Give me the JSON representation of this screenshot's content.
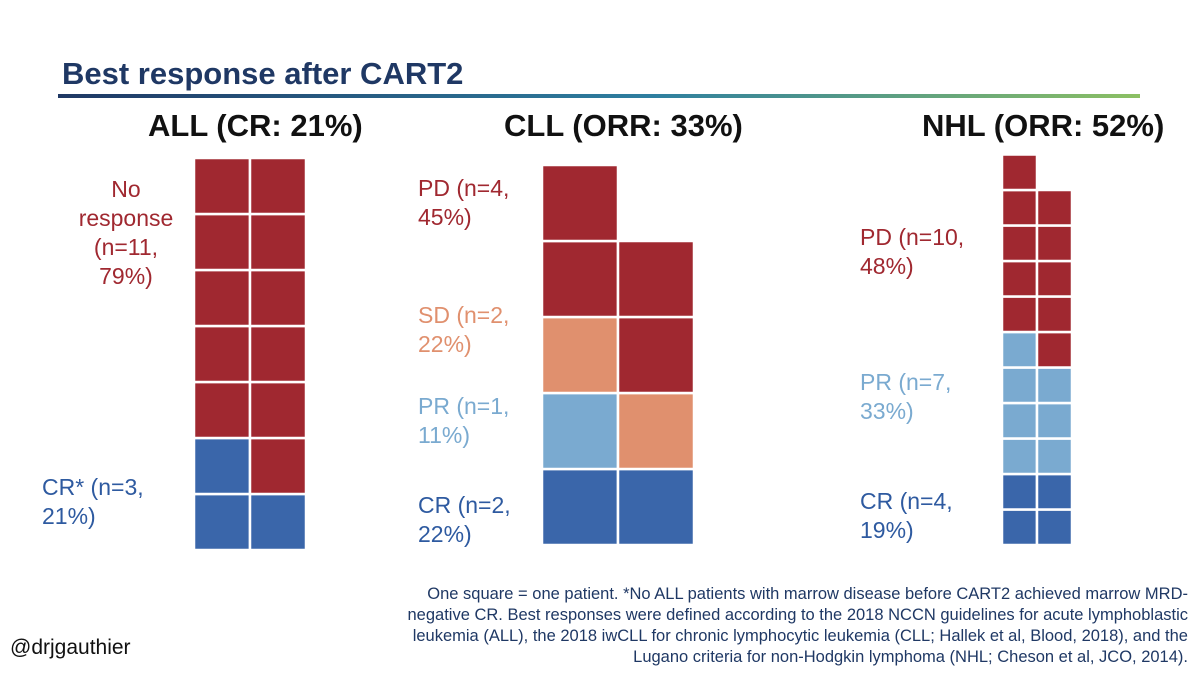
{
  "title": "Best response after CART2",
  "colors": {
    "title": "#1f3864",
    "no_response": "#a02830",
    "pd": "#a02830",
    "sd": "#e0906e",
    "pr": "#7aaad0",
    "cr": "#3a66aa",
    "label_red": "#a02830",
    "label_orange": "#e0906e",
    "label_lightblue": "#7aaad0",
    "label_blue": "#2e5aa0"
  },
  "chart_data": [
    {
      "type": "waffle",
      "title": "ALL (CR: 21%)",
      "unit": "One square = one patient",
      "columns": 2,
      "categories": [
        {
          "key": "cr",
          "label": "CR* (n=3,\n21%)",
          "n": 3,
          "percent": 21
        },
        {
          "key": "no_response",
          "label": "No\nresponse\n(n=11,\n79%)",
          "n": 11,
          "percent": 79
        }
      ]
    },
    {
      "type": "waffle",
      "title": "CLL (ORR: 33%)",
      "unit": "One square = one patient",
      "columns": 2,
      "categories": [
        {
          "key": "cr",
          "label": "CR (n=2,\n22%)",
          "n": 2,
          "percent": 22
        },
        {
          "key": "pr",
          "label": "PR (n=1,\n11%)",
          "n": 1,
          "percent": 11
        },
        {
          "key": "sd",
          "label": "SD (n=2,\n22%)",
          "n": 2,
          "percent": 22
        },
        {
          "key": "pd",
          "label": "PD (n=4,\n45%)",
          "n": 4,
          "percent": 45
        }
      ]
    },
    {
      "type": "waffle",
      "title": "NHL (ORR: 52%)",
      "unit": "One square = one patient",
      "columns": 2,
      "categories": [
        {
          "key": "cr",
          "label": "CR (n=4,\n19%)",
          "n": 4,
          "percent": 19
        },
        {
          "key": "pr",
          "label": "PR (n=7,\n33%)",
          "n": 7,
          "percent": 33
        },
        {
          "key": "pd",
          "label": "PD (n=10,\n48%)",
          "n": 10,
          "percent": 48
        }
      ]
    }
  ],
  "footnote": "One square = one patient. *No ALL patients with marrow disease before CART2 achieved marrow MRD-negative CR. Best responses were defined according to the 2018 NCCN guidelines for acute lymphoblastic leukemia (ALL), the 2018 iwCLL for chronic lymphocytic leukemia (CLL; Hallek et al, Blood, 2018), and the Lugano criteria for non-Hodgkin lymphoma (NHL; Cheson et al, JCO, 2014).",
  "handle": "@drjgauthier"
}
